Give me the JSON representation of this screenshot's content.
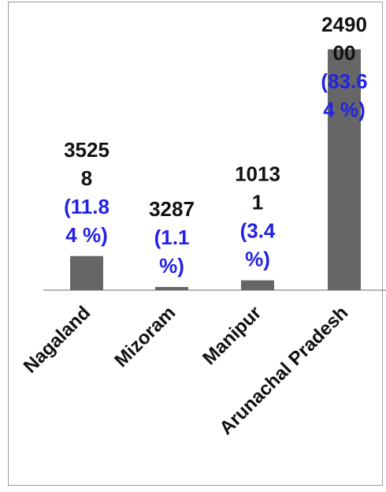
{
  "chart_data": {
    "type": "bar",
    "categories": [
      "Nagaland",
      "Mizoram",
      "Manipur",
      "Arunachal Pradesh"
    ],
    "values": [
      35258,
      3287,
      10131,
      249000
    ],
    "data_labels": [
      {
        "value_lines": [
          "3525",
          "8"
        ],
        "percent_lines": [
          "(11.8",
          "4 %)"
        ]
      },
      {
        "value_lines": [
          "3287"
        ],
        "percent_lines": [
          "(1.1",
          "%)"
        ]
      },
      {
        "value_lines": [
          "1013",
          "1"
        ],
        "percent_lines": [
          "(3.4",
          "%)"
        ]
      },
      {
        "value_lines": [
          "2490",
          "00"
        ],
        "percent_lines": [
          "(83.6",
          "4 %)"
        ]
      }
    ],
    "ylim": [
      0,
      300000
    ],
    "grid": false,
    "legend": "none",
    "colors": {
      "bar": "#666666",
      "value_label": "#111111",
      "percent_label": "#2222e6",
      "axis": "#9a9a9a"
    }
  }
}
